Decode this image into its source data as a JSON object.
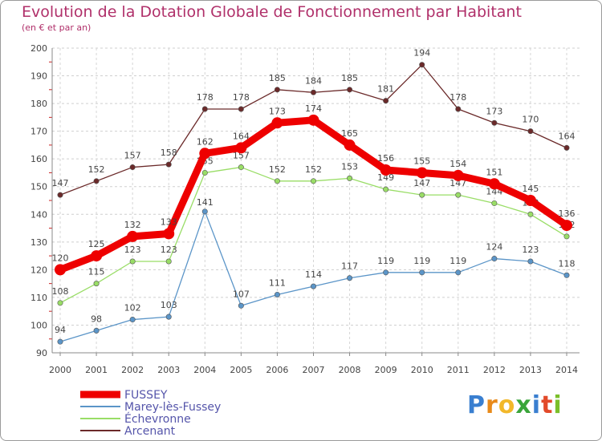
{
  "title": "Evolution de la Dotation Globale de Fonctionnement par Habitant",
  "subtitle": "(en € et par an)",
  "logo": {
    "p": "P",
    "r": "r",
    "o": "o",
    "x": "x",
    "i": "i",
    "t": "t",
    "i2": "i"
  },
  "chart_data": {
    "type": "line",
    "title": "Evolution de la Dotation Globale de Fonctionnement par Habitant",
    "ylabel": "(en € et par an)",
    "xlabel": "",
    "ylim": [
      90,
      200
    ],
    "yticks": [
      90,
      100,
      110,
      120,
      130,
      140,
      150,
      160,
      170,
      180,
      190,
      200
    ],
    "grid": true,
    "legend": "bottom-left",
    "categories": [
      "2000",
      "2001",
      "2002",
      "2003",
      "2004",
      "2005",
      "2006",
      "2007",
      "2008",
      "2009",
      "2010",
      "2011",
      "2012",
      "2013",
      "2014"
    ],
    "series": [
      {
        "name": "FUSSEY",
        "color": "#ee0000",
        "values": [
          120,
          125,
          132,
          133,
          162,
          164,
          173,
          174,
          165,
          156,
          155,
          154,
          151,
          145,
          136
        ]
      },
      {
        "name": "Marey-lès-Fussey",
        "color": "#5b95c8",
        "values": [
          94,
          98,
          102,
          103,
          141,
          107,
          111,
          114,
          117,
          119,
          119,
          119,
          124,
          123,
          118
        ]
      },
      {
        "name": "Échevronne",
        "color": "#99dd66",
        "values": [
          108,
          115,
          123,
          123,
          155,
          157,
          152,
          152,
          153,
          149,
          147,
          147,
          144,
          140,
          132
        ]
      },
      {
        "name": "Arcenant",
        "color": "#6b2a2a",
        "values": [
          147,
          152,
          157,
          158,
          178,
          178,
          185,
          184,
          185,
          181,
          194,
          178,
          173,
          170,
          164
        ]
      }
    ]
  }
}
